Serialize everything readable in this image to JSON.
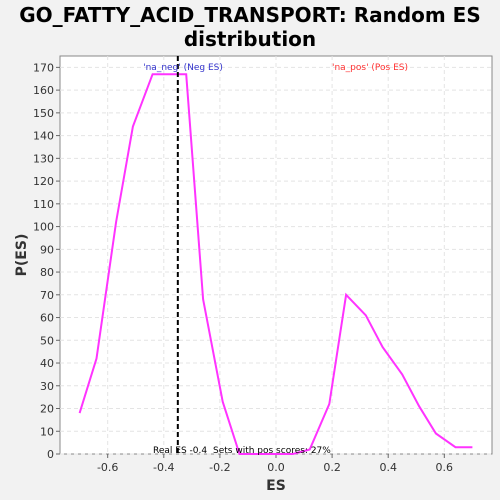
{
  "chart_data": {
    "type": "line",
    "title": "GO_FATTY_ACID_TRANSPORT: Random ES distribution",
    "title_lines": [
      "GO_FATTY_ACID_TRANSPORT: Random ES",
      "distribution"
    ],
    "xlabel": "ES",
    "ylabel": "P(ES)",
    "xlim": [
      -0.77,
      0.77
    ],
    "ylim": [
      0,
      175
    ],
    "xticks": [
      -0.6,
      -0.4,
      -0.2,
      0.0,
      0.2,
      0.4,
      0.6
    ],
    "xtick_labels": [
      "-0.6",
      "-0.4",
      "-0.2",
      "0.0",
      "0.2",
      "0.4",
      "0.6"
    ],
    "yticks": [
      0,
      10,
      20,
      30,
      40,
      50,
      60,
      70,
      80,
      90,
      100,
      110,
      120,
      130,
      140,
      150,
      160,
      170
    ],
    "ytick_labels": [
      "0",
      "10",
      "20",
      "30",
      "40",
      "50",
      "60",
      "70",
      "80",
      "90",
      "100",
      "110",
      "120",
      "130",
      "140",
      "150",
      "160",
      "170"
    ],
    "grid": true,
    "series": [
      {
        "color": "#ff33ff",
        "x": [
          -0.7,
          -0.64,
          -0.57,
          -0.51,
          -0.44,
          -0.38,
          -0.32,
          -0.26,
          -0.19,
          -0.13,
          -0.07,
          0.0,
          0.06,
          0.12,
          0.19,
          0.25,
          0.32,
          0.38,
          0.45,
          0.51,
          0.57,
          0.64,
          0.7
        ],
        "y": [
          18,
          42,
          102,
          144,
          167,
          167,
          167,
          68,
          23,
          0,
          0,
          0,
          0,
          2,
          22,
          70,
          61,
          47,
          35,
          21,
          9,
          3,
          3
        ]
      }
    ],
    "x_points_exact": [
      -0.7,
      -0.64,
      -0.57,
      -0.51,
      -0.44,
      -0.38,
      -0.32,
      -0.26,
      -0.19,
      -0.13,
      -0.06,
      0.0,
      0.06,
      0.13,
      0.19,
      0.25,
      0.32,
      0.38,
      0.45,
      0.51,
      0.57,
      0.64,
      0.7
    ],
    "real_es": -0.35,
    "annotations": {
      "neg_label": "'na_neg' (Neg ES)",
      "neg_color": "#3333cc",
      "pos_label": "'na_pos' (Pos ES)",
      "pos_color": "#ff3333",
      "real_es_text": "Real ES -0.4",
      "pos_scores_text": "Sets with pos scores: 27%"
    }
  }
}
